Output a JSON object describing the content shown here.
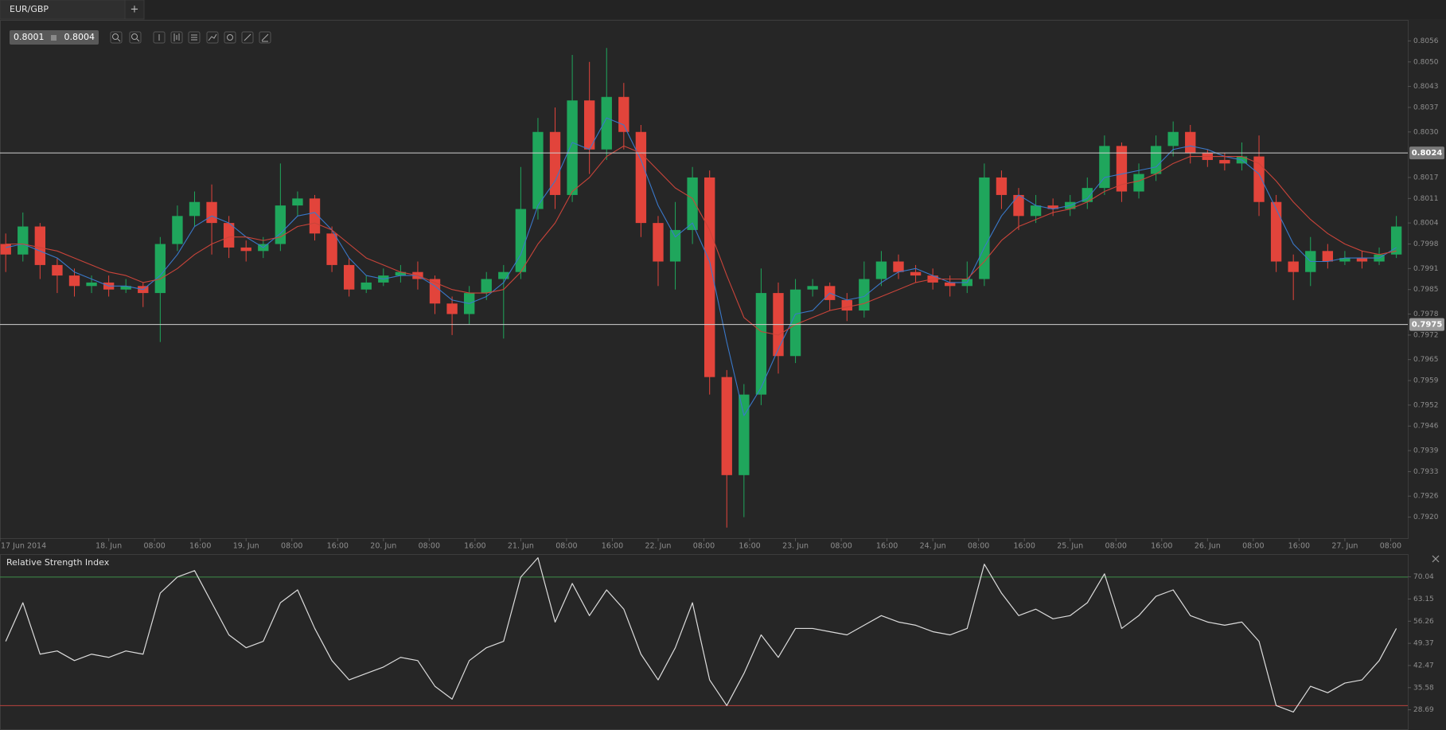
{
  "tab": {
    "title": "EUR/GBP",
    "add": "+"
  },
  "quote": {
    "bid": 0.8001,
    "ask": 0.8004
  },
  "chart_data": [
    {
      "type": "candlestick",
      "up_color": "#1fa65c",
      "down_color": "#e2443b",
      "xlim": [
        5,
        251
      ],
      "ylim": [
        0.7914,
        0.8062
      ],
      "xticks": [
        {
          "value": 5,
          "label": "17 Jun 2014"
        },
        {
          "value": 24,
          "label": "18. Jun"
        },
        {
          "value": 32,
          "label": "08:00"
        },
        {
          "value": 40,
          "label": "16:00"
        },
        {
          "value": 48,
          "label": "19. Jun"
        },
        {
          "value": 56,
          "label": "08:00"
        },
        {
          "value": 64,
          "label": "16:00"
        },
        {
          "value": 72,
          "label": "20. Jun"
        },
        {
          "value": 80,
          "label": "08:00"
        },
        {
          "value": 88,
          "label": "16:00"
        },
        {
          "value": 96,
          "label": "21. Jun"
        },
        {
          "value": 104,
          "label": "08:00"
        },
        {
          "value": 112,
          "label": "16:00"
        },
        {
          "value": 120,
          "label": "22. Jun"
        },
        {
          "value": 128,
          "label": "08:00"
        },
        {
          "value": 136,
          "label": "16:00"
        },
        {
          "value": 144,
          "label": "23. Jun"
        },
        {
          "value": 152,
          "label": "08:00"
        },
        {
          "value": 160,
          "label": "16:00"
        },
        {
          "value": 168,
          "label": "24. Jun"
        },
        {
          "value": 176,
          "label": "08:00"
        },
        {
          "value": 184,
          "label": "16:00"
        },
        {
          "value": 192,
          "label": "25. Jun"
        },
        {
          "value": 200,
          "label": "08:00"
        },
        {
          "value": 208,
          "label": "16:00"
        },
        {
          "value": 216,
          "label": "26. Jun"
        },
        {
          "value": 224,
          "label": "08:00"
        },
        {
          "value": 232,
          "label": "16:00"
        },
        {
          "value": 240,
          "label": "27. Jun"
        },
        {
          "value": 248,
          "label": "08:00"
        }
      ],
      "yticks": [
        0.8056,
        {
          "value": 0.805,
          "label": "0.8050"
        },
        0.8043,
        0.8037,
        {
          "value": 0.803,
          "label": "0.8030"
        },
        0.8017,
        0.8011,
        0.8004,
        0.7998,
        0.7991,
        0.7985,
        0.7978,
        0.7972,
        0.7965,
        0.7959,
        0.7952,
        0.7946,
        0.7939,
        0.7933,
        0.7926,
        {
          "value": 0.792,
          "label": "0.7920"
        }
      ],
      "hlines": [
        0.8024,
        0.7975
      ],
      "x": [
        6,
        9,
        12,
        15,
        18,
        21,
        24,
        27,
        30,
        33,
        36,
        39,
        42,
        45,
        48,
        51,
        54,
        57,
        60,
        63,
        66,
        69,
        72,
        75,
        78,
        81,
        84,
        87,
        90,
        93,
        96,
        99,
        102,
        105,
        108,
        111,
        114,
        117,
        120,
        123,
        126,
        129,
        132,
        135,
        138,
        141,
        144,
        147,
        150,
        153,
        156,
        159,
        162,
        165,
        168,
        171,
        174,
        177,
        180,
        183,
        186,
        189,
        192,
        195,
        198,
        201,
        204,
        207,
        210,
        213,
        216,
        219,
        222,
        225,
        228,
        231,
        234,
        237,
        240,
        243,
        246,
        249
      ],
      "open": [
        0.7998,
        0.7995,
        0.8003,
        0.7992,
        0.7989,
        0.7986,
        0.7987,
        0.7985,
        0.7986,
        0.7984,
        0.7998,
        0.8006,
        0.801,
        0.8004,
        0.7997,
        0.7996,
        0.7998,
        0.8009,
        0.8011,
        0.8001,
        0.7992,
        0.7985,
        0.7987,
        0.7989,
        0.799,
        0.7988,
        0.7981,
        0.7978,
        0.7984,
        0.7988,
        0.799,
        0.8008,
        0.803,
        0.8012,
        0.8039,
        0.8025,
        0.804,
        0.803,
        0.8004,
        0.7993,
        0.8002,
        0.8017,
        0.796,
        0.7932,
        0.7955,
        0.7984,
        0.7966,
        0.7985,
        0.7986,
        0.7982,
        0.7979,
        0.7988,
        0.7993,
        0.799,
        0.7989,
        0.7987,
        0.7986,
        0.7988,
        0.8017,
        0.8012,
        0.8006,
        0.8009,
        0.8008,
        0.801,
        0.8014,
        0.8026,
        0.8013,
        0.8018,
        0.8026,
        0.803,
        0.8024,
        0.8022,
        0.8021,
        0.8023,
        0.801,
        0.7993,
        0.799,
        0.7996,
        0.7993,
        0.7994,
        0.7993,
        0.7995
      ],
      "high": [
        0.8001,
        0.8007,
        0.8004,
        0.7994,
        0.7991,
        0.7989,
        0.7989,
        0.7988,
        0.7987,
        0.8,
        0.8009,
        0.8013,
        0.8015,
        0.8006,
        0.7999,
        0.8,
        0.8021,
        0.8013,
        0.8012,
        0.8003,
        0.7994,
        0.7989,
        0.7991,
        0.7992,
        0.7993,
        0.7989,
        0.7983,
        0.7986,
        0.799,
        0.7992,
        0.802,
        0.8034,
        0.8037,
        0.8052,
        0.805,
        0.8054,
        0.8044,
        0.8032,
        0.8006,
        0.801,
        0.802,
        0.8019,
        0.7962,
        0.7958,
        0.7991,
        0.7987,
        0.7988,
        0.7988,
        0.7987,
        0.7984,
        0.7993,
        0.7996,
        0.7995,
        0.7992,
        0.7991,
        0.7989,
        0.7993,
        0.8021,
        0.8019,
        0.8014,
        0.8012,
        0.8011,
        0.8012,
        0.8017,
        0.8029,
        0.8027,
        0.8021,
        0.8029,
        0.8033,
        0.8032,
        0.8025,
        0.8024,
        0.8027,
        0.8029,
        0.8012,
        0.7995,
        0.8,
        0.7998,
        0.7996,
        0.7996,
        0.7997,
        0.8006
      ],
      "low": [
        0.799,
        0.7993,
        0.7988,
        0.7984,
        0.7983,
        0.7984,
        0.7983,
        0.7984,
        0.798,
        0.797,
        0.7996,
        0.8003,
        0.7995,
        0.7994,
        0.7993,
        0.7994,
        0.7996,
        0.8006,
        0.7999,
        0.799,
        0.7983,
        0.7984,
        0.7986,
        0.7987,
        0.7985,
        0.7978,
        0.7972,
        0.7975,
        0.7982,
        0.7971,
        0.7988,
        0.8005,
        0.8008,
        0.801,
        0.8018,
        0.8022,
        0.8025,
        0.8,
        0.7986,
        0.7985,
        0.7998,
        0.7955,
        0.7917,
        0.792,
        0.7952,
        0.7961,
        0.7964,
        0.7983,
        0.7979,
        0.7976,
        0.7977,
        0.7986,
        0.7988,
        0.7987,
        0.7985,
        0.7983,
        0.7984,
        0.7986,
        0.8008,
        0.8002,
        0.8004,
        0.8006,
        0.8006,
        0.8008,
        0.8012,
        0.801,
        0.8011,
        0.8016,
        0.8023,
        0.8021,
        0.802,
        0.8019,
        0.8019,
        0.8006,
        0.799,
        0.7982,
        0.7986,
        0.7991,
        0.7992,
        0.7991,
        0.7992,
        0.7994
      ],
      "close": [
        0.7995,
        0.8003,
        0.7992,
        0.7989,
        0.7986,
        0.7987,
        0.7985,
        0.7986,
        0.7984,
        0.7998,
        0.8006,
        0.801,
        0.8004,
        0.7997,
        0.7996,
        0.7998,
        0.8009,
        0.8011,
        0.8001,
        0.7992,
        0.7985,
        0.7987,
        0.7989,
        0.799,
        0.7988,
        0.7981,
        0.7978,
        0.7984,
        0.7988,
        0.799,
        0.8008,
        0.803,
        0.8012,
        0.8039,
        0.8025,
        0.804,
        0.803,
        0.8004,
        0.7993,
        0.8002,
        0.8017,
        0.796,
        0.7932,
        0.7955,
        0.7984,
        0.7966,
        0.7985,
        0.7986,
        0.7982,
        0.7979,
        0.7988,
        0.7993,
        0.799,
        0.7989,
        0.7987,
        0.7986,
        0.7988,
        0.8017,
        0.8012,
        0.8006,
        0.8009,
        0.8008,
        0.801,
        0.8014,
        0.8026,
        0.8013,
        0.8018,
        0.8026,
        0.803,
        0.8024,
        0.8022,
        0.8021,
        0.8023,
        0.801,
        0.7993,
        0.799,
        0.7996,
        0.7993,
        0.7994,
        0.7993,
        0.7995,
        0.8003
      ],
      "overlays": [
        {
          "color": "#3a78c9",
          "values": [
            0.7997,
            0.7998,
            0.7996,
            0.7994,
            0.799,
            0.7988,
            0.7986,
            0.7986,
            0.7985,
            0.7989,
            0.7995,
            0.8003,
            0.8006,
            0.8004,
            0.8,
            0.7997,
            0.8001,
            0.8006,
            0.8007,
            0.8002,
            0.7994,
            0.7989,
            0.7988,
            0.7989,
            0.7989,
            0.7986,
            0.7982,
            0.7981,
            0.7983,
            0.7987,
            0.7995,
            0.8009,
            0.8016,
            0.8027,
            0.8025,
            0.8034,
            0.8032,
            0.8022,
            0.8009,
            0.8,
            0.8004,
            0.7993,
            0.797,
            0.7949,
            0.7957,
            0.7968,
            0.7978,
            0.7979,
            0.7984,
            0.7982,
            0.7983,
            0.7987,
            0.799,
            0.7991,
            0.7989,
            0.7987,
            0.7987,
            0.7997,
            0.8006,
            0.8012,
            0.8009,
            0.8008,
            0.8009,
            0.8011,
            0.8017,
            0.8018,
            0.8019,
            0.802,
            0.8025,
            0.8026,
            0.8025,
            0.8023,
            0.8022,
            0.8018,
            0.8008,
            0.7998,
            0.7993,
            0.7993,
            0.7994,
            0.7994,
            0.7994,
            0.7997
          ]
        },
        {
          "color": "#c9443a",
          "values": [
            0.7998,
            0.7998,
            0.7997,
            0.7996,
            0.7994,
            0.7992,
            0.799,
            0.7989,
            0.7987,
            0.7988,
            0.7991,
            0.7995,
            0.7998,
            0.8,
            0.8,
            0.7999,
            0.8,
            0.8003,
            0.8004,
            0.8002,
            0.7998,
            0.7994,
            0.7992,
            0.799,
            0.7989,
            0.7987,
            0.7985,
            0.7984,
            0.7984,
            0.7985,
            0.799,
            0.7998,
            0.8004,
            0.8013,
            0.8017,
            0.8023,
            0.8026,
            0.8024,
            0.8019,
            0.8014,
            0.8011,
            0.8002,
            0.7989,
            0.7977,
            0.7973,
            0.7972,
            0.7975,
            0.7977,
            0.7979,
            0.798,
            0.7981,
            0.7983,
            0.7985,
            0.7987,
            0.7988,
            0.7988,
            0.7988,
            0.7993,
            0.7999,
            0.8003,
            0.8005,
            0.8007,
            0.8008,
            0.801,
            0.8013,
            0.8015,
            0.8016,
            0.8018,
            0.8021,
            0.8023,
            0.8023,
            0.8023,
            0.8023,
            0.8021,
            0.8016,
            0.801,
            0.8005,
            0.8001,
            0.7998,
            0.7996,
            0.7995,
            0.7996
          ]
        }
      ]
    },
    {
      "type": "line",
      "title": "Relative Strength Index",
      "color": "#dcdcdc",
      "xlim": [
        5,
        251
      ],
      "ylim": [
        22.4,
        76.9
      ],
      "yticks": [
        70.04,
        63.15,
        56.26,
        49.37,
        42.47,
        35.58,
        28.69
      ],
      "levels": [
        {
          "value": 70,
          "color": "#3f8f4a"
        },
        {
          "value": 30,
          "color": "#b8433f"
        }
      ],
      "x": [
        6,
        9,
        12,
        15,
        18,
        21,
        24,
        27,
        30,
        33,
        36,
        39,
        42,
        45,
        48,
        51,
        54,
        57,
        60,
        63,
        66,
        69,
        72,
        75,
        78,
        81,
        84,
        87,
        90,
        93,
        96,
        99,
        102,
        105,
        108,
        111,
        114,
        117,
        120,
        123,
        126,
        129,
        132,
        135,
        138,
        141,
        144,
        147,
        150,
        153,
        156,
        159,
        162,
        165,
        168,
        171,
        174,
        177,
        180,
        183,
        186,
        189,
        192,
        195,
        198,
        201,
        204,
        207,
        210,
        213,
        216,
        219,
        222,
        225,
        228,
        231,
        234,
        237,
        240,
        243,
        246,
        249
      ],
      "values": [
        50,
        62,
        46,
        47,
        44,
        46,
        45,
        47,
        46,
        65,
        70,
        72,
        62,
        52,
        48,
        50,
        62,
        66,
        54,
        44,
        38,
        40,
        42,
        45,
        44,
        36,
        32,
        44,
        48,
        50,
        70,
        76,
        56,
        68,
        58,
        66,
        60,
        46,
        38,
        48,
        62,
        38,
        30,
        40,
        52,
        45,
        54,
        54,
        53,
        52,
        55,
        58,
        56,
        55,
        53,
        52,
        54,
        74,
        65,
        58,
        60,
        57,
        58,
        62,
        71,
        54,
        58,
        64,
        66,
        58,
        56,
        55,
        56,
        50,
        30,
        28,
        36,
        34,
        37,
        38,
        44,
        54
      ]
    }
  ]
}
